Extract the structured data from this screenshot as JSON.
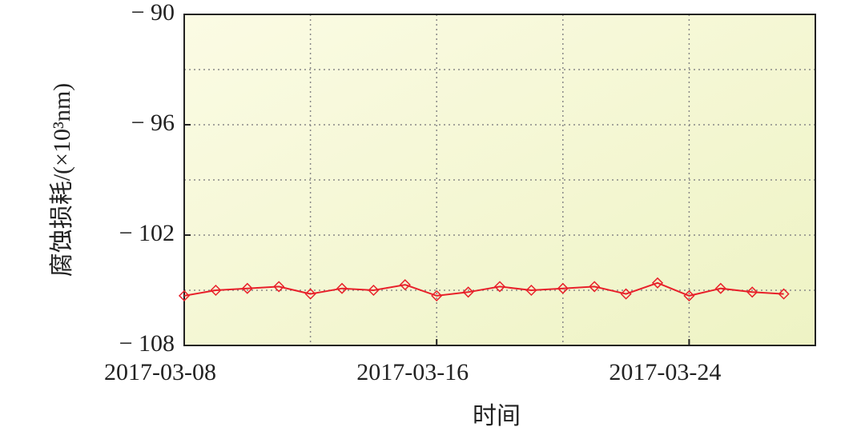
{
  "chart_data": {
    "type": "line",
    "x_label": "时间",
    "y_label": "腐蚀损耗/(×10³nm)",
    "x": [
      "2017-03-08",
      "2017-03-09",
      "2017-03-10",
      "2017-03-11",
      "2017-03-12",
      "2017-03-13",
      "2017-03-14",
      "2017-03-15",
      "2017-03-16",
      "2017-03-17",
      "2017-03-18",
      "2017-03-19",
      "2017-03-20",
      "2017-03-21",
      "2017-03-22",
      "2017-03-23",
      "2017-03-24",
      "2017-03-25",
      "2017-03-26",
      "2017-03-27"
    ],
    "series": [
      {
        "name": "腐蚀损耗",
        "color": "#e8202a",
        "values": [
          -105.3,
          -105.0,
          -104.9,
          -104.8,
          -105.2,
          -104.9,
          -105.0,
          -104.7,
          -105.3,
          -105.1,
          -104.8,
          -105.0,
          -104.9,
          -104.8,
          -105.2,
          -104.6,
          -105.3,
          -104.9,
          -105.1,
          -105.2
        ]
      }
    ],
    "xlim": [
      "2017-03-08",
      "2017-03-28"
    ],
    "xticks": [
      "2017-03-08",
      "2017-03-16",
      "2017-03-24"
    ],
    "minor_xticks": [
      "2017-03-12",
      "2017-03-20"
    ],
    "ylim": [
      -108,
      -90
    ],
    "yticks": [
      {
        "value": -90,
        "label": "− 90"
      },
      {
        "value": -96,
        "label": "− 96"
      },
      {
        "value": -102,
        "label": "− 102"
      },
      {
        "value": -108,
        "label": "− 108"
      }
    ],
    "minor_yticks": [
      -93,
      -99,
      -105
    ],
    "grid": true
  }
}
